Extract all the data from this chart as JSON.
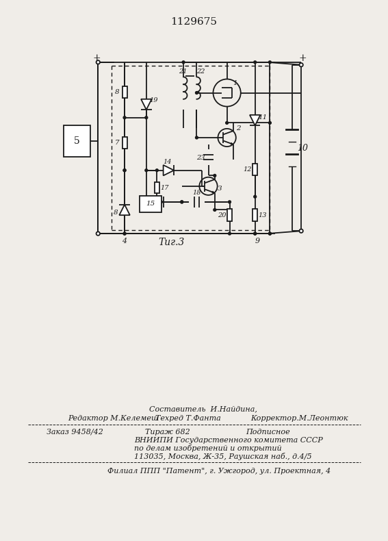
{
  "title": "1129675",
  "fig_caption": "Τиг.3",
  "background_color": "#f0ede8",
  "line_color": "#1a1a1a",
  "footer": {
    "line1_center": "Составитель  И.Найдина,",
    "line2_left": "Редактор М.Келемеш",
    "line2_center": "Техред Т.Фанта",
    "line2_right": "Корректор.М.Леонтюк",
    "line3_left": "Заказ 9458/42",
    "line3_center": "Тираж 682",
    "line3_right": "Подписное",
    "line4": "ВНИИПИ Государственного комитета СССР",
    "line5": "по делам изобретений и открытий",
    "line6": "113035, Москва, Ж-35, Раушская наб., д.4/5",
    "line7": "Филиал ППП \"Патент\", г. Ужгород, ул. Проектная, 4"
  }
}
